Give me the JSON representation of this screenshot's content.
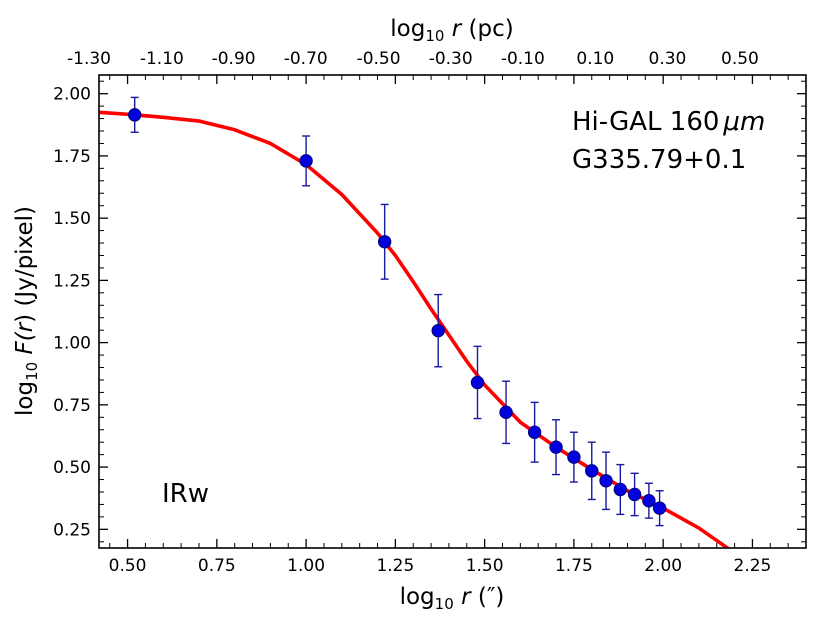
{
  "chart_data": {
    "type": "scatter",
    "xlabel": {
      "base": "log",
      "sub": "10",
      "var": "r",
      "unit": " (″)"
    },
    "ylabel": {
      "base": "log",
      "sub": "10",
      "func": "F(",
      "var": "r",
      "close": ") (Jy/pixel)"
    },
    "top_xlabel": {
      "base": "log",
      "sub": "10",
      "var": "r",
      "unit": " (pc)"
    },
    "xlim": [
      0.42,
      2.4
    ],
    "ylim": [
      0.175,
      2.075
    ],
    "x_ticks": [
      0.5,
      0.75,
      1.0,
      1.25,
      1.5,
      1.75,
      2.0,
      2.25
    ],
    "x_tick_labels": [
      "0.50",
      "0.75",
      "1.00",
      "1.25",
      "1.50",
      "1.75",
      "2.00",
      "2.25"
    ],
    "y_ticks": [
      0.25,
      0.5,
      0.75,
      1.0,
      1.25,
      1.5,
      1.75,
      2.0
    ],
    "y_tick_labels": [
      "0.25",
      "0.50",
      "0.75",
      "1.00",
      "1.25",
      "1.50",
      "1.75",
      "2.00"
    ],
    "top_x_ticks_at": [
      0.392,
      0.596,
      0.797,
      0.999,
      1.203,
      1.405,
      1.607,
      1.81,
      2.012,
      2.215
    ],
    "top_x_tick_labels": [
      "-1.30",
      "-1.10",
      "-0.90",
      "-0.70",
      "-0.50",
      "-0.30",
      "-0.10",
      "0.10",
      "0.30",
      "0.50"
    ],
    "annotations": {
      "survey": "Hi-GAL 160",
      "unit": "μm",
      "source": "G335.79+0.1",
      "class": "IRw"
    },
    "series": [
      {
        "type": "scatter",
        "color": "#0000dd",
        "x": [
          0.52,
          1.0,
          1.22,
          1.37,
          1.48,
          1.56,
          1.64,
          1.7,
          1.75,
          1.8,
          1.84,
          1.88,
          1.92,
          1.96,
          1.99
        ],
        "y": [
          1.915,
          1.73,
          1.405,
          1.048,
          0.84,
          0.72,
          0.64,
          0.58,
          0.54,
          0.485,
          0.445,
          0.41,
          0.39,
          0.365,
          0.335
        ],
        "yerr": [
          0.07,
          0.1,
          0.15,
          0.145,
          0.145,
          0.125,
          0.12,
          0.11,
          0.1,
          0.115,
          0.115,
          0.1,
          0.085,
          0.07,
          0.07
        ]
      },
      {
        "type": "line",
        "color": "#ff0000",
        "x": [
          0.42,
          0.52,
          0.6,
          0.7,
          0.8,
          0.9,
          1.0,
          1.1,
          1.2,
          1.25,
          1.3,
          1.35,
          1.4,
          1.45,
          1.5,
          1.6,
          1.7,
          1.8,
          1.9,
          2.0,
          2.1,
          2.2,
          2.4
        ],
        "y": [
          1.925,
          1.915,
          1.905,
          1.89,
          1.855,
          1.8,
          1.715,
          1.595,
          1.44,
          1.35,
          1.245,
          1.135,
          1.03,
          0.925,
          0.83,
          0.68,
          0.58,
          0.49,
          0.405,
          0.335,
          0.255,
          0.155,
          -0.05
        ]
      }
    ]
  }
}
